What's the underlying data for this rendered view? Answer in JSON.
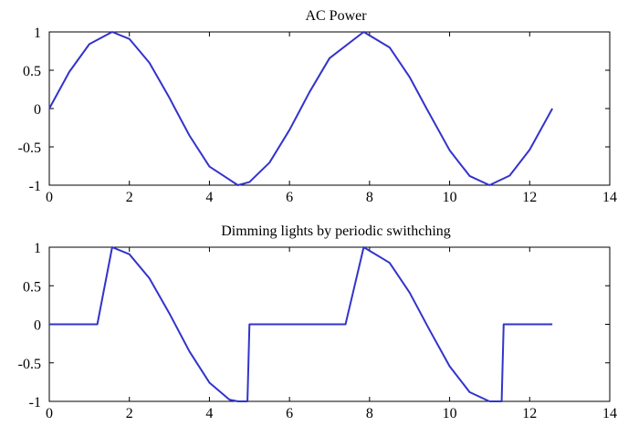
{
  "chart_data": [
    {
      "type": "line",
      "title": "AC Power",
      "xlabel": "",
      "ylabel": "",
      "xlim": [
        0,
        14
      ],
      "ylim": [
        -1,
        1
      ],
      "xticks": [
        "0",
        "2",
        "4",
        "6",
        "8",
        "10",
        "12",
        "14"
      ],
      "yticks": [
        "1",
        "0.5",
        "0",
        "-0.5",
        "-1"
      ],
      "grid": false,
      "line_color": "#3333cc",
      "series": [
        {
          "x": [
            0,
            0.5,
            1.0,
            1.5708,
            2.0,
            2.5,
            3.0,
            3.1416,
            3.5,
            4.0,
            4.7124,
            5.0,
            5.5,
            6.0,
            6.2832,
            6.5,
            7.0,
            7.854,
            8.5,
            9.0,
            9.4248,
            10.0,
            10.5,
            10.9956,
            11.5,
            12.0,
            12.5664
          ],
          "y": [
            0,
            0.479,
            0.841,
            1.0,
            0.909,
            0.598,
            0.141,
            0,
            -0.351,
            -0.757,
            -1.0,
            -0.959,
            -0.706,
            -0.279,
            0,
            0.215,
            0.657,
            1.0,
            0.798,
            0.412,
            0,
            -0.544,
            -0.88,
            -1.0,
            -0.875,
            -0.537,
            0
          ]
        }
      ]
    },
    {
      "type": "line",
      "title": "Dimming lights by periodic swithching",
      "xlabel": "",
      "ylabel": "",
      "xlim": [
        0,
        14
      ],
      "ylim": [
        -1,
        1
      ],
      "xticks": [
        "0",
        "2",
        "4",
        "6",
        "8",
        "10",
        "12",
        "14"
      ],
      "yticks": [
        "1",
        "0.5",
        "0",
        "-0.5",
        "-1"
      ],
      "grid": false,
      "line_color": "#3333cc",
      "series": [
        {
          "x": [
            0,
            1.2,
            1.5708,
            2.0,
            2.5,
            3.0,
            3.5,
            4.0,
            4.5,
            4.7124,
            4.95,
            5.0,
            6.0,
            7.4,
            7.854,
            8.5,
            9.0,
            9.5,
            10.0,
            10.5,
            10.9956,
            11.3,
            11.35,
            12.0,
            12.5664
          ],
          "y": [
            0,
            0,
            1.0,
            0.909,
            0.598,
            0.141,
            -0.351,
            -0.757,
            -0.978,
            -1.0,
            -1.0,
            0,
            0,
            0,
            1.0,
            0.798,
            0.412,
            -0.075,
            -0.544,
            -0.88,
            -1.0,
            -1.0,
            0,
            0,
            0
          ]
        }
      ]
    }
  ]
}
